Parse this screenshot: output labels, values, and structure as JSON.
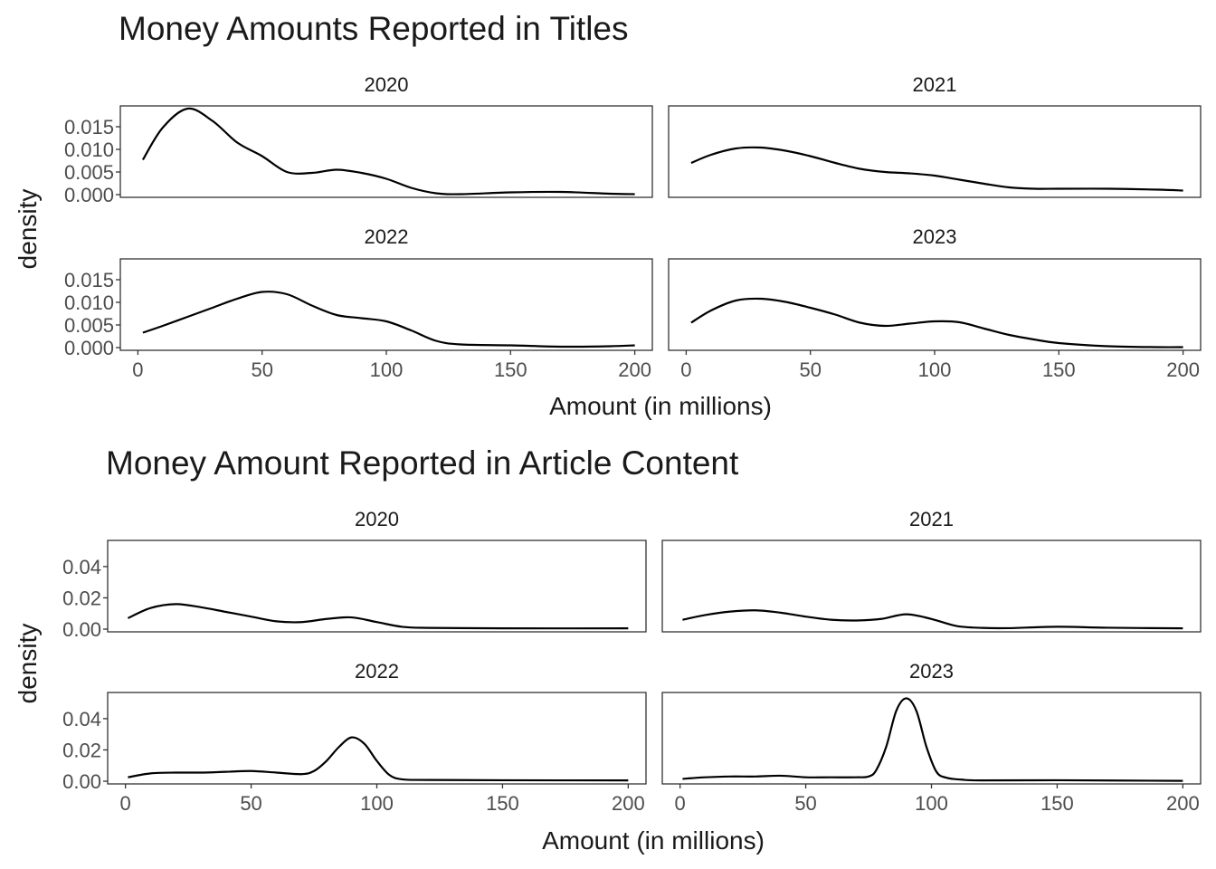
{
  "chart_data": [
    {
      "type": "area",
      "title": "Money Amounts Reported in Titles",
      "xlabel": "Amount (in millions)",
      "ylabel": "density",
      "xlim": [
        0,
        200
      ],
      "ylim": [
        0,
        0.019
      ],
      "x_ticks": [
        0,
        50,
        100,
        150,
        200
      ],
      "x_tick_labels": [
        "0",
        "50",
        "100",
        "150",
        "200"
      ],
      "y_ticks": [
        0,
        0.005,
        0.01,
        0.015
      ],
      "y_tick_labels": [
        "0.000",
        "0.005",
        "0.010",
        "0.015"
      ],
      "grid": false,
      "series": [
        {
          "name": "2020",
          "x": [
            2,
            10,
            20,
            30,
            40,
            50,
            60,
            70,
            80,
            90,
            100,
            110,
            120,
            130,
            150,
            170,
            190,
            200
          ],
          "y": [
            0.0077,
            0.0148,
            0.019,
            0.0163,
            0.0115,
            0.0085,
            0.005,
            0.0048,
            0.0055,
            0.0048,
            0.0035,
            0.0015,
            0.0003,
            0.0001,
            0.0005,
            0.0006,
            0.0002,
            0.0001
          ]
        },
        {
          "name": "2021",
          "x": [
            2,
            10,
            20,
            30,
            40,
            50,
            60,
            70,
            80,
            90,
            100,
            110,
            120,
            130,
            140,
            150,
            170,
            190,
            200
          ],
          "y": [
            0.007,
            0.0088,
            0.0102,
            0.0104,
            0.0097,
            0.0085,
            0.007,
            0.0057,
            0.005,
            0.0047,
            0.0042,
            0.0033,
            0.0024,
            0.0016,
            0.0013,
            0.0013,
            0.0013,
            0.0011,
            0.0009
          ]
        },
        {
          "name": "2022",
          "x": [
            2,
            10,
            20,
            30,
            40,
            50,
            60,
            70,
            80,
            90,
            100,
            110,
            120,
            130,
            150,
            170,
            190,
            200
          ],
          "y": [
            0.0033,
            0.0048,
            0.0068,
            0.0088,
            0.0108,
            0.0123,
            0.0118,
            0.0093,
            0.0072,
            0.0065,
            0.0058,
            0.0038,
            0.0015,
            0.0007,
            0.0005,
            0.0002,
            0.0003,
            0.0005
          ]
        },
        {
          "name": "2023",
          "x": [
            2,
            10,
            20,
            30,
            40,
            50,
            60,
            70,
            80,
            90,
            100,
            110,
            120,
            130,
            140,
            150,
            170,
            190,
            200
          ],
          "y": [
            0.0055,
            0.0082,
            0.0104,
            0.0108,
            0.0101,
            0.0088,
            0.0073,
            0.0055,
            0.0048,
            0.0053,
            0.0058,
            0.0056,
            0.0042,
            0.0028,
            0.0018,
            0.001,
            0.0003,
            0.0001,
            0.0001
          ]
        }
      ]
    },
    {
      "type": "area",
      "title": "Money Amount Reported in Article Content",
      "xlabel": "Amount (in millions)",
      "ylabel": "density",
      "xlim": [
        0,
        200
      ],
      "ylim": [
        0,
        0.055
      ],
      "x_ticks": [
        0,
        50,
        100,
        150,
        200
      ],
      "x_tick_labels": [
        "0",
        "50",
        "100",
        "150",
        "200"
      ],
      "y_ticks": [
        0,
        0.02,
        0.04
      ],
      "y_tick_labels": [
        "0.00",
        "0.02",
        "0.04"
      ],
      "grid": false,
      "series": [
        {
          "name": "2020",
          "x": [
            1,
            10,
            20,
            30,
            40,
            50,
            60,
            70,
            80,
            90,
            100,
            110,
            120,
            150,
            200
          ],
          "y": [
            0.007,
            0.0135,
            0.016,
            0.014,
            0.011,
            0.008,
            0.005,
            0.0045,
            0.0065,
            0.0075,
            0.0045,
            0.0015,
            0.0008,
            0.0005,
            0.0005
          ]
        },
        {
          "name": "2021",
          "x": [
            1,
            10,
            20,
            30,
            40,
            50,
            60,
            70,
            80,
            90,
            100,
            110,
            120,
            130,
            150,
            170,
            200
          ],
          "y": [
            0.006,
            0.009,
            0.0112,
            0.012,
            0.0105,
            0.008,
            0.006,
            0.0055,
            0.0065,
            0.0095,
            0.0065,
            0.002,
            0.0008,
            0.0006,
            0.0015,
            0.0009,
            0.0005
          ]
        },
        {
          "name": "2022",
          "x": [
            1,
            10,
            20,
            30,
            40,
            50,
            60,
            70,
            75,
            80,
            85,
            90,
            95,
            100,
            105,
            110,
            120,
            150,
            200
          ],
          "y": [
            0.0025,
            0.005,
            0.0055,
            0.0055,
            0.006,
            0.0065,
            0.0055,
            0.0045,
            0.0065,
            0.013,
            0.022,
            0.028,
            0.024,
            0.013,
            0.004,
            0.0012,
            0.0008,
            0.0006,
            0.0005
          ]
        },
        {
          "name": "2023",
          "x": [
            1,
            10,
            20,
            30,
            40,
            50,
            60,
            70,
            75,
            78,
            82,
            86,
            90,
            94,
            98,
            102,
            106,
            112,
            120,
            150,
            200
          ],
          "y": [
            0.0015,
            0.0025,
            0.003,
            0.003,
            0.0035,
            0.0025,
            0.0025,
            0.0025,
            0.003,
            0.007,
            0.022,
            0.045,
            0.053,
            0.045,
            0.022,
            0.006,
            0.0022,
            0.001,
            0.0005,
            0.0006,
            0.0002
          ]
        }
      ]
    }
  ]
}
